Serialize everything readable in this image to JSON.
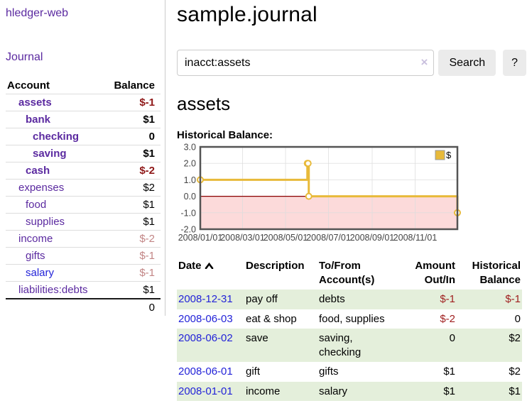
{
  "app": {
    "brand": "hledger-web",
    "nav_journal": "Journal"
  },
  "sidebar": {
    "accounts_header": {
      "account": "Account",
      "balance": "Balance"
    },
    "accounts": [
      {
        "name": "assets",
        "depth": 1,
        "bold": true,
        "balance": "$-1",
        "balance_style": "neg-strong"
      },
      {
        "name": "bank",
        "depth": 2,
        "bold": true,
        "balance": "$1",
        "balance_style": "pos"
      },
      {
        "name": "checking",
        "depth": 3,
        "bold": true,
        "balance": "0",
        "balance_style": "pos"
      },
      {
        "name": "saving",
        "depth": 3,
        "bold": true,
        "balance": "$1",
        "balance_style": "pos"
      },
      {
        "name": "cash",
        "depth": 2,
        "bold": true,
        "balance": "$-2",
        "balance_style": "neg-strong"
      },
      {
        "name": "expenses",
        "depth": 1,
        "bold": false,
        "balance": "$2",
        "balance_style": "pos"
      },
      {
        "name": "food",
        "depth": 2,
        "bold": false,
        "balance": "$1",
        "balance_style": "pos"
      },
      {
        "name": "supplies",
        "depth": 2,
        "bold": false,
        "balance": "$1",
        "balance_style": "pos"
      },
      {
        "name": "income",
        "depth": 1,
        "bold": false,
        "balance": "$-2",
        "balance_style": "neg-soft"
      },
      {
        "name": "gifts",
        "depth": 2,
        "bold": false,
        "balance": "$-1",
        "balance_style": "neg-soft"
      },
      {
        "name": "salary",
        "depth": 2,
        "bold": false,
        "balance": "$-1",
        "balance_style": "neg-soft",
        "link_color": "blue"
      },
      {
        "name": "liabilities:debts",
        "depth": 1,
        "bold": false,
        "balance": "$1",
        "balance_style": "pos"
      }
    ],
    "total": "0"
  },
  "header": {
    "title": "sample.journal"
  },
  "search": {
    "value": "inacct:assets",
    "clear_icon": "×",
    "button": "Search",
    "help_button": "?"
  },
  "account_page": {
    "title": "assets",
    "chart_label": "Historical Balance:"
  },
  "chart_data": {
    "type": "line",
    "step": true,
    "title": "Historical Balance",
    "series": [
      {
        "name": "$",
        "color": "#e8ba3a",
        "points": [
          [
            "2008-01-01",
            1
          ],
          [
            "2008-06-01",
            2
          ],
          [
            "2008-06-02",
            2
          ],
          [
            "2008-06-03",
            0
          ],
          [
            "2008-12-31",
            -1
          ]
        ]
      }
    ],
    "xlim": [
      "2008-01-01",
      "2008-12-31"
    ],
    "ylim": [
      -2,
      3
    ],
    "x_ticks": [
      "2008/01/01",
      "2008/03/01",
      "2008/05/01",
      "2008/07/01",
      "2008/09/01",
      "2008/11/01"
    ],
    "y_ticks": [
      "3.0",
      "2.0",
      "1.0",
      "0.0",
      "-1.0",
      "-2.0"
    ],
    "grid": true,
    "grid_color": "#dcdcdc",
    "border_color": "#545454",
    "tick_label_color": "#444444",
    "negative_region_color": "#fcdada",
    "zero_line_color": "#8b0000",
    "legend": {
      "label": "$",
      "position": "top-right",
      "swatch_color": "#e8ba3a"
    }
  },
  "register": {
    "columns": {
      "date": "Date",
      "description": "Description",
      "tofrom": "To/From Account(s)",
      "amount": "Amount Out/In",
      "balance": "Historical Balance"
    },
    "sort": {
      "column": "date",
      "direction": "ascending"
    },
    "rows": [
      {
        "date": "2008-12-31",
        "description": "pay off",
        "accounts": "debts",
        "amount": "$-1",
        "amount_neg": true,
        "balance": "$-1",
        "balance_neg": true
      },
      {
        "date": "2008-06-03",
        "description": "eat & shop",
        "accounts": "food, supplies",
        "amount": "$-2",
        "amount_neg": true,
        "balance": "0",
        "balance_neg": false
      },
      {
        "date": "2008-06-02",
        "description": "save",
        "accounts": "saving, checking",
        "amount": "0",
        "amount_neg": false,
        "balance": "$2",
        "balance_neg": false
      },
      {
        "date": "2008-06-01",
        "description": "gift",
        "accounts": "gifts",
        "amount": "$1",
        "amount_neg": false,
        "balance": "$2",
        "balance_neg": false
      },
      {
        "date": "2008-01-01",
        "description": "income",
        "accounts": "salary",
        "amount": "$1",
        "amount_neg": false,
        "balance": "$1",
        "balance_neg": false
      }
    ]
  }
}
